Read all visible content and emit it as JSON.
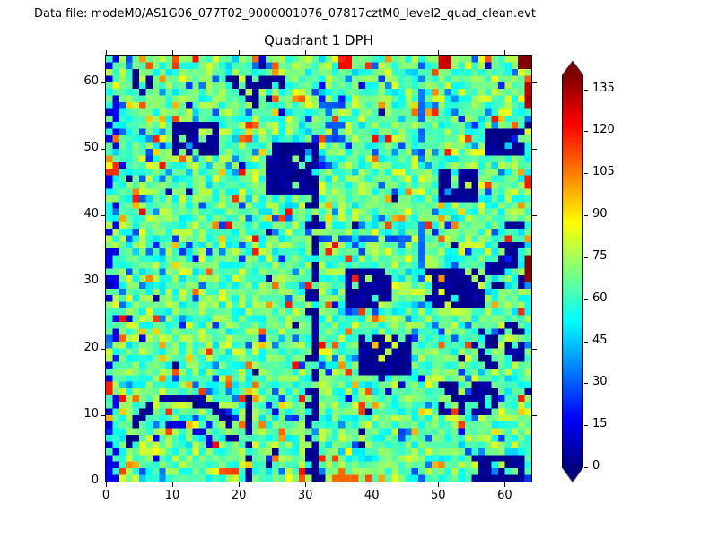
{
  "header": {
    "text": "Data file: modeM0/AS1G06_077T02_9000001076_07817cztM0_level2_quad_clean.evt"
  },
  "chart_data": {
    "type": "heatmap",
    "title": "Quadrant 1 DPH",
    "xlabel": "",
    "ylabel": "",
    "grid_size": [
      64,
      64
    ],
    "xlim": [
      0,
      64
    ],
    "ylim": [
      0,
      64
    ],
    "xticks": [
      0,
      10,
      20,
      30,
      40,
      50,
      60
    ],
    "yticks": [
      0,
      10,
      20,
      30,
      40,
      50,
      60
    ],
    "colormap": "jet",
    "vmin": 0,
    "vmax": 140,
    "colorbar": {
      "ticks": [
        0,
        15,
        30,
        45,
        60,
        75,
        90,
        105,
        120,
        135
      ],
      "extend": "both"
    },
    "background_noise": {
      "seed": 20240817,
      "mean": 66,
      "spread": 22,
      "p_high": 0.05,
      "high_base": 92,
      "high_range": 30,
      "p_low": 0.05,
      "low_base": 30,
      "low_range": 18,
      "p_dark": 0.012
    },
    "low_features": [
      {
        "x": 4,
        "y": 58,
        "w": 3,
        "h": 4,
        "p": 0.7
      },
      {
        "x": 10,
        "y": 49,
        "w": 7,
        "h": 5,
        "p": 0.8
      },
      {
        "x": 17,
        "y": 59,
        "w": 10,
        "h": 2,
        "p": 0.65
      },
      {
        "x": 20,
        "y": 56,
        "w": 6,
        "h": 3,
        "p": 0.35
      },
      {
        "x": 24,
        "y": 43,
        "w": 8,
        "h": 8,
        "p": 0.85
      },
      {
        "x": 30,
        "y": 0,
        "w": 1,
        "h": 44,
        "p": 0.25
      },
      {
        "x": 31,
        "y": 0,
        "w": 1,
        "h": 44,
        "p": 0.75
      },
      {
        "x": 32,
        "y": 36,
        "w": 15,
        "h": 1,
        "p": 0.6,
        "v": 25
      },
      {
        "x": 47,
        "y": 30,
        "w": 1,
        "h": 33,
        "p": 0.6,
        "v": 30
      },
      {
        "x": 36,
        "y": 26,
        "w": 7,
        "h": 6,
        "p": 0.8
      },
      {
        "x": 38,
        "y": 16,
        "w": 8,
        "h": 6,
        "p": 0.85
      },
      {
        "x": 48,
        "y": 26,
        "w": 9,
        "h": 6,
        "p": 0.8
      },
      {
        "x": 57,
        "y": 29,
        "w": 6,
        "h": 4,
        "p": 0.55
      },
      {
        "x": 50,
        "y": 42,
        "w": 6,
        "h": 5,
        "p": 0.8
      },
      {
        "x": 59,
        "y": 33,
        "w": 4,
        "h": 6,
        "p": 0.55
      },
      {
        "x": 55,
        "y": 17,
        "w": 8,
        "h": 7,
        "p": 0.45
      },
      {
        "x": 50,
        "y": 10,
        "w": 9,
        "h": 5,
        "p": 0.55
      },
      {
        "x": 55,
        "y": 0,
        "w": 8,
        "h": 4,
        "p": 0.85
      },
      {
        "x": 57,
        "y": 49,
        "w": 6,
        "h": 4,
        "p": 0.75
      },
      {
        "x": 21,
        "y": 0,
        "w": 1,
        "h": 13,
        "p": 0.8
      },
      {
        "x": 0,
        "y": 0,
        "w": 2,
        "h": 64,
        "p": 0.28,
        "v": 12
      },
      {
        "x": 33,
        "y": 51,
        "w": 3,
        "h": 6,
        "p": 0.5,
        "v": 25
      }
    ],
    "arc_features": [
      {
        "cx": 11,
        "cy": 4,
        "r": 8,
        "a0": 10,
        "a1": 185,
        "p": 0.8,
        "v": 0
      },
      {
        "cx": 11,
        "cy": 4,
        "r": 4.2,
        "a0": 0,
        "a1": 200,
        "p": 0.65,
        "v": 10
      }
    ],
    "high_features": [
      {
        "x": 10,
        "y": 62,
        "w": 1,
        "h": 2,
        "v": 110
      },
      {
        "x": 22,
        "y": 63,
        "w": 1,
        "h": 1,
        "v": 105
      },
      {
        "x": 35,
        "y": 62,
        "w": 2,
        "h": 2,
        "v": 118
      },
      {
        "x": 42,
        "y": 63,
        "w": 1,
        "h": 1,
        "v": 100
      },
      {
        "x": 50,
        "y": 62,
        "w": 2,
        "h": 2,
        "v": 126
      },
      {
        "x": 57,
        "y": 63,
        "w": 1,
        "h": 1,
        "v": 110
      },
      {
        "x": 62,
        "y": 62,
        "w": 2,
        "h": 2,
        "v": 140
      },
      {
        "x": 63,
        "y": 30,
        "w": 1,
        "h": 4,
        "v": 136
      },
      {
        "x": 63,
        "y": 44,
        "w": 1,
        "h": 2,
        "v": 116
      },
      {
        "x": 63,
        "y": 56,
        "w": 1,
        "h": 4,
        "v": 130
      },
      {
        "x": 34,
        "y": 0,
        "w": 7,
        "h": 2,
        "v": 106,
        "p": 0.5
      },
      {
        "x": 0,
        "y": 13,
        "w": 1,
        "h": 2,
        "v": 114
      },
      {
        "x": 0,
        "y": 46,
        "w": 2,
        "h": 2,
        "v": 112,
        "p": 0.7
      },
      {
        "x": 17,
        "y": 1,
        "w": 2,
        "h": 1,
        "v": 108
      },
      {
        "x": 8,
        "y": 47,
        "w": 1,
        "h": 1,
        "v": 118
      }
    ]
  }
}
